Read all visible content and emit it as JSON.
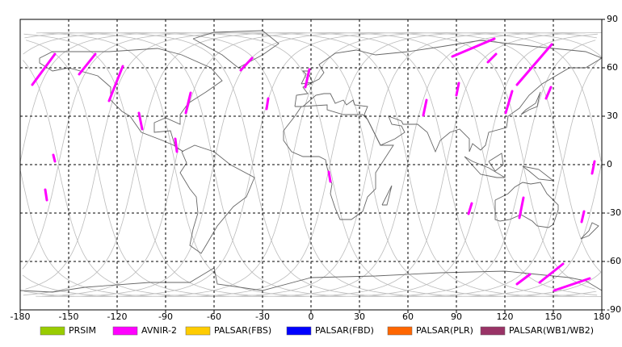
{
  "chart_data": {
    "type": "map",
    "xlim": [
      -180,
      180
    ],
    "ylim": [
      -90,
      90
    ],
    "xticks": [
      -180,
      -150,
      -120,
      -90,
      -60,
      -30,
      0,
      30,
      60,
      90,
      120,
      150,
      180
    ],
    "yticks": [
      -90,
      -60,
      -30,
      0,
      30,
      60,
      90
    ],
    "grid": true,
    "legend": "bottom",
    "series": [
      {
        "name": "PRSIM",
        "color": "#99cc00"
      },
      {
        "name": "AVNIR-2",
        "color": "#ff00ff",
        "segments": [
          [
            -172.5,
            49.5,
            -158.5,
            68.5
          ],
          [
            -143.5,
            56,
            -133.5,
            68.5
          ],
          [
            -125,
            39.5,
            -116.5,
            61
          ],
          [
            -106.5,
            32,
            -104.5,
            22
          ],
          [
            -84,
            16,
            -83,
            8
          ],
          [
            -77.5,
            32,
            -74.5,
            44.5
          ],
          [
            -43.5,
            58.5,
            -36.5,
            66
          ],
          [
            -27.5,
            34.5,
            -26.5,
            41
          ],
          [
            -3.5,
            48,
            -1,
            59
          ],
          [
            11,
            -4.5,
            12,
            -10.5
          ],
          [
            69.5,
            30.5,
            71.5,
            40
          ],
          [
            87.5,
            67,
            113.5,
            78
          ],
          [
            109.5,
            63.5,
            114.5,
            68.5
          ],
          [
            90,
            43,
            91.5,
            50.5
          ],
          [
            127.5,
            49.5,
            149,
            74.5
          ],
          [
            120.5,
            32,
            124.5,
            45.5
          ],
          [
            -159.5,
            6,
            -158.5,
            2
          ],
          [
            -164.5,
            -15.5,
            -163.5,
            -22
          ],
          [
            97.5,
            -30.5,
            99.5,
            -24
          ],
          [
            129,
            -33,
            131.5,
            -20.5
          ],
          [
            167.5,
            -35.5,
            169,
            -29
          ],
          [
            174,
            -5.5,
            175.5,
            2
          ],
          [
            127.5,
            -74,
            135.5,
            -68
          ],
          [
            141.5,
            -73,
            156,
            -61.5
          ],
          [
            150.5,
            -78,
            172.5,
            -70.5
          ],
          [
            145.5,
            41,
            148.5,
            48
          ]
        ]
      },
      {
        "name": "PALSAR(FBS)",
        "color": "#ffcc00"
      },
      {
        "name": "PALSAR(FBD)",
        "color": "#0000ff"
      },
      {
        "name": "PALSAR(PLR)",
        "color": "#ff6600"
      },
      {
        "name": "PALSAR(WB1/WB2)",
        "color": "#993366"
      }
    ]
  }
}
